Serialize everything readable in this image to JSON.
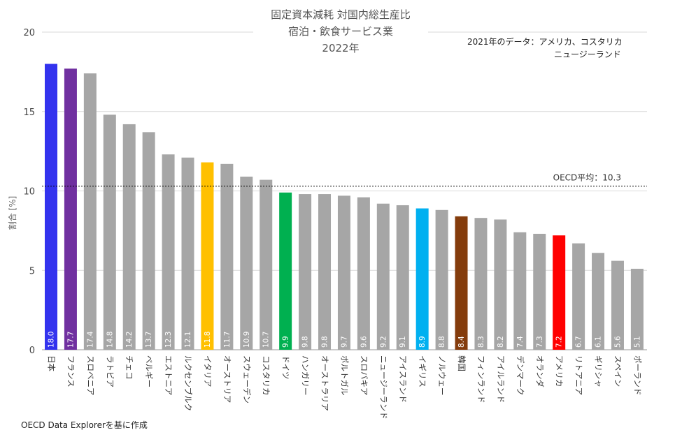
{
  "chart_data": {
    "type": "bar",
    "title_lines": [
      "固定資本減耗 対国内総生産比",
      "宿泊・飲食サービス業",
      "2022年"
    ],
    "note_lines": [
      "2021年のデータ：アメリカ、コスタリカ",
      "ニュージーランド"
    ],
    "ylabel": "割合 [%]",
    "ylim": [
      0,
      20
    ],
    "yticks": [
      0,
      5,
      10,
      15,
      20
    ],
    "grid": true,
    "average": {
      "value": 10.3,
      "label": "OECD平均：10.3"
    },
    "source": "OECD Data Explorerを基に作成",
    "categories": [
      "日本",
      "フランス",
      "スロベニア",
      "ラトビア",
      "チェコ",
      "ベルギー",
      "エストニア",
      "ルクセンブルク",
      "イタリア",
      "オーストリア",
      "スウェーデン",
      "コスタリカ",
      "ドイツ",
      "ハンガリー",
      "オーストラリア",
      "ポルトガル",
      "スロバキア",
      "ニュージーランド",
      "アイスランド",
      "イギリス",
      "ノルウェー",
      "韓国",
      "フィンランド",
      "アイルランド",
      "デンマーク",
      "オランダ",
      "アメリカ",
      "リトアニア",
      "ギリシャ",
      "スペイン",
      "ポーランド"
    ],
    "values": [
      18.0,
      17.7,
      17.4,
      14.8,
      14.2,
      13.7,
      12.3,
      12.1,
      11.8,
      11.7,
      10.9,
      10.7,
      9.9,
      9.8,
      9.8,
      9.7,
      9.6,
      9.2,
      9.1,
      8.9,
      8.8,
      8.4,
      8.3,
      8.2,
      7.4,
      7.3,
      7.2,
      6.7,
      6.1,
      5.6,
      5.1
    ],
    "value_labels": [
      "18.0",
      "17.7",
      "17.4",
      "14.8",
      "14.2",
      "13.7",
      "12.3",
      "12.1",
      "11.8",
      "11.7",
      "10.9",
      "10.7",
      "9.9",
      "9.8",
      "9.8",
      "9.7",
      "9.6",
      "9.2",
      "9.1",
      "8.9",
      "8.8",
      "8.4",
      "8.3",
      "8.2",
      "7.4",
      "7.3",
      "7.2",
      "6.7",
      "6.1",
      "5.6",
      "5.1"
    ],
    "colors": [
      "#3333ee",
      "#7030a0",
      "#a6a6a6",
      "#a6a6a6",
      "#a6a6a6",
      "#a6a6a6",
      "#a6a6a6",
      "#a6a6a6",
      "#ffc000",
      "#a6a6a6",
      "#a6a6a6",
      "#a6a6a6",
      "#00b050",
      "#a6a6a6",
      "#a6a6a6",
      "#a6a6a6",
      "#a6a6a6",
      "#a6a6a6",
      "#a6a6a6",
      "#00b0f0",
      "#a6a6a6",
      "#843c0c",
      "#a6a6a6",
      "#a6a6a6",
      "#a6a6a6",
      "#a6a6a6",
      "#ff0000",
      "#a6a6a6",
      "#a6a6a6",
      "#a6a6a6",
      "#a6a6a6"
    ]
  }
}
